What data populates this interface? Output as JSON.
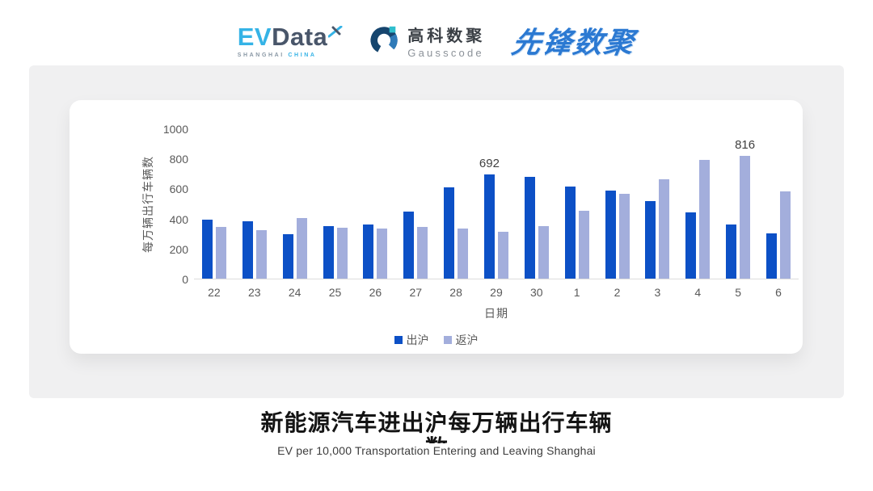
{
  "header": {
    "evdata": {
      "ev": "EV",
      "data": "Data",
      "sub_shanghai": "SHANGHAI",
      "sub_china": "CHINA"
    },
    "gausscode": {
      "name_cn": "高科数聚",
      "name_en": "Gausscode"
    },
    "pioneer": {
      "text": "先锋数聚"
    }
  },
  "chart_data": {
    "type": "bar",
    "categories": [
      "22",
      "23",
      "24",
      "25",
      "26",
      "27",
      "28",
      "29",
      "30",
      "1",
      "2",
      "3",
      "4",
      "5",
      "6"
    ],
    "series": [
      {
        "name": "出沪",
        "color": "#0C50C6",
        "values": [
          390,
          381,
          295,
          347,
          362,
          447,
          610,
          692,
          678,
          612,
          585,
          515,
          442,
          358,
          303
        ],
        "labels": {
          "7": "692"
        }
      },
      {
        "name": "返沪",
        "color": "#A3AEDC",
        "values": [
          342,
          323,
          401,
          339,
          334,
          343,
          336,
          313,
          352,
          450,
          562,
          661,
          789,
          816,
          583
        ],
        "labels": {
          "13": "816"
        }
      }
    ],
    "title": "新能源汽车进出沪每万辆出行车辆数",
    "xlabel": "日期",
    "ylabel": "每万辆出行车辆数",
    "ylim": [
      0,
      1000
    ],
    "yticks": [
      0,
      200,
      400,
      600,
      800,
      1000
    ],
    "grid": false,
    "legend_position": "bottom"
  },
  "footer": {
    "title_line1": "新能源汽车进出沪每万辆出行车辆",
    "title_line2": "数",
    "subtitle": "EV per 10,000 Transportation Entering and Leaving Shanghai"
  },
  "colors": {
    "bar_outbound": "#0C50C6",
    "bar_return": "#A3AEDC",
    "panel_bg": "#F0F0F1",
    "axis_text": "#595959"
  }
}
